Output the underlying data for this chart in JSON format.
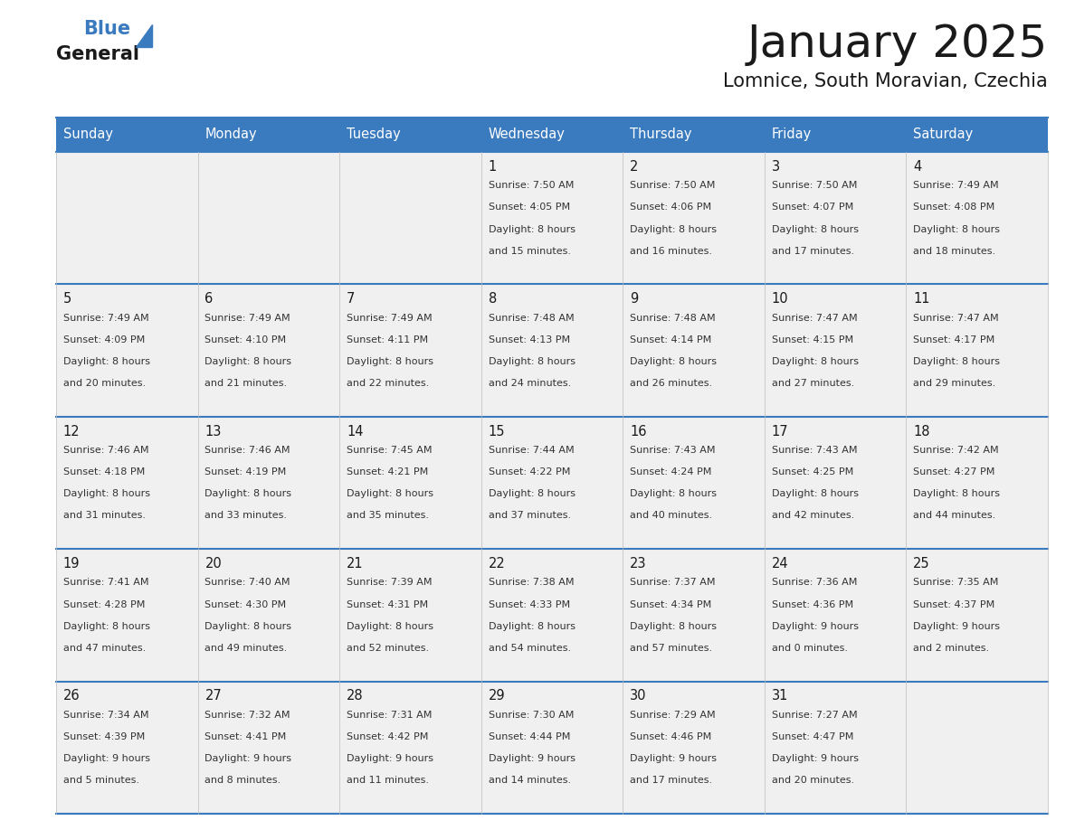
{
  "title": "January 2025",
  "subtitle": "Lomnice, South Moravian, Czechia",
  "header_bg_color": "#3a7abf",
  "header_text_color": "#ffffff",
  "cell_bg_color": "#f0f0f0",
  "border_color": "#3a7abf",
  "day_headers": [
    "Sunday",
    "Monday",
    "Tuesday",
    "Wednesday",
    "Thursday",
    "Friday",
    "Saturday"
  ],
  "title_color": "#1a1a1a",
  "subtitle_color": "#1a1a1a",
  "day_num_color": "#1a1a1a",
  "cell_text_color": "#333333",
  "calendar": [
    [
      {
        "day": "",
        "sunrise": "",
        "sunset": "",
        "daylight": ""
      },
      {
        "day": "",
        "sunrise": "",
        "sunset": "",
        "daylight": ""
      },
      {
        "day": "",
        "sunrise": "",
        "sunset": "",
        "daylight": ""
      },
      {
        "day": "1",
        "sunrise": "Sunrise: 7:50 AM",
        "sunset": "Sunset: 4:05 PM",
        "daylight": "Daylight: 8 hours\nand 15 minutes."
      },
      {
        "day": "2",
        "sunrise": "Sunrise: 7:50 AM",
        "sunset": "Sunset: 4:06 PM",
        "daylight": "Daylight: 8 hours\nand 16 minutes."
      },
      {
        "day": "3",
        "sunrise": "Sunrise: 7:50 AM",
        "sunset": "Sunset: 4:07 PM",
        "daylight": "Daylight: 8 hours\nand 17 minutes."
      },
      {
        "day": "4",
        "sunrise": "Sunrise: 7:49 AM",
        "sunset": "Sunset: 4:08 PM",
        "daylight": "Daylight: 8 hours\nand 18 minutes."
      }
    ],
    [
      {
        "day": "5",
        "sunrise": "Sunrise: 7:49 AM",
        "sunset": "Sunset: 4:09 PM",
        "daylight": "Daylight: 8 hours\nand 20 minutes."
      },
      {
        "day": "6",
        "sunrise": "Sunrise: 7:49 AM",
        "sunset": "Sunset: 4:10 PM",
        "daylight": "Daylight: 8 hours\nand 21 minutes."
      },
      {
        "day": "7",
        "sunrise": "Sunrise: 7:49 AM",
        "sunset": "Sunset: 4:11 PM",
        "daylight": "Daylight: 8 hours\nand 22 minutes."
      },
      {
        "day": "8",
        "sunrise": "Sunrise: 7:48 AM",
        "sunset": "Sunset: 4:13 PM",
        "daylight": "Daylight: 8 hours\nand 24 minutes."
      },
      {
        "day": "9",
        "sunrise": "Sunrise: 7:48 AM",
        "sunset": "Sunset: 4:14 PM",
        "daylight": "Daylight: 8 hours\nand 26 minutes."
      },
      {
        "day": "10",
        "sunrise": "Sunrise: 7:47 AM",
        "sunset": "Sunset: 4:15 PM",
        "daylight": "Daylight: 8 hours\nand 27 minutes."
      },
      {
        "day": "11",
        "sunrise": "Sunrise: 7:47 AM",
        "sunset": "Sunset: 4:17 PM",
        "daylight": "Daylight: 8 hours\nand 29 minutes."
      }
    ],
    [
      {
        "day": "12",
        "sunrise": "Sunrise: 7:46 AM",
        "sunset": "Sunset: 4:18 PM",
        "daylight": "Daylight: 8 hours\nand 31 minutes."
      },
      {
        "day": "13",
        "sunrise": "Sunrise: 7:46 AM",
        "sunset": "Sunset: 4:19 PM",
        "daylight": "Daylight: 8 hours\nand 33 minutes."
      },
      {
        "day": "14",
        "sunrise": "Sunrise: 7:45 AM",
        "sunset": "Sunset: 4:21 PM",
        "daylight": "Daylight: 8 hours\nand 35 minutes."
      },
      {
        "day": "15",
        "sunrise": "Sunrise: 7:44 AM",
        "sunset": "Sunset: 4:22 PM",
        "daylight": "Daylight: 8 hours\nand 37 minutes."
      },
      {
        "day": "16",
        "sunrise": "Sunrise: 7:43 AM",
        "sunset": "Sunset: 4:24 PM",
        "daylight": "Daylight: 8 hours\nand 40 minutes."
      },
      {
        "day": "17",
        "sunrise": "Sunrise: 7:43 AM",
        "sunset": "Sunset: 4:25 PM",
        "daylight": "Daylight: 8 hours\nand 42 minutes."
      },
      {
        "day": "18",
        "sunrise": "Sunrise: 7:42 AM",
        "sunset": "Sunset: 4:27 PM",
        "daylight": "Daylight: 8 hours\nand 44 minutes."
      }
    ],
    [
      {
        "day": "19",
        "sunrise": "Sunrise: 7:41 AM",
        "sunset": "Sunset: 4:28 PM",
        "daylight": "Daylight: 8 hours\nand 47 minutes."
      },
      {
        "day": "20",
        "sunrise": "Sunrise: 7:40 AM",
        "sunset": "Sunset: 4:30 PM",
        "daylight": "Daylight: 8 hours\nand 49 minutes."
      },
      {
        "day": "21",
        "sunrise": "Sunrise: 7:39 AM",
        "sunset": "Sunset: 4:31 PM",
        "daylight": "Daylight: 8 hours\nand 52 minutes."
      },
      {
        "day": "22",
        "sunrise": "Sunrise: 7:38 AM",
        "sunset": "Sunset: 4:33 PM",
        "daylight": "Daylight: 8 hours\nand 54 minutes."
      },
      {
        "day": "23",
        "sunrise": "Sunrise: 7:37 AM",
        "sunset": "Sunset: 4:34 PM",
        "daylight": "Daylight: 8 hours\nand 57 minutes."
      },
      {
        "day": "24",
        "sunrise": "Sunrise: 7:36 AM",
        "sunset": "Sunset: 4:36 PM",
        "daylight": "Daylight: 9 hours\nand 0 minutes."
      },
      {
        "day": "25",
        "sunrise": "Sunrise: 7:35 AM",
        "sunset": "Sunset: 4:37 PM",
        "daylight": "Daylight: 9 hours\nand 2 minutes."
      }
    ],
    [
      {
        "day": "26",
        "sunrise": "Sunrise: 7:34 AM",
        "sunset": "Sunset: 4:39 PM",
        "daylight": "Daylight: 9 hours\nand 5 minutes."
      },
      {
        "day": "27",
        "sunrise": "Sunrise: 7:32 AM",
        "sunset": "Sunset: 4:41 PM",
        "daylight": "Daylight: 9 hours\nand 8 minutes."
      },
      {
        "day": "28",
        "sunrise": "Sunrise: 7:31 AM",
        "sunset": "Sunset: 4:42 PM",
        "daylight": "Daylight: 9 hours\nand 11 minutes."
      },
      {
        "day": "29",
        "sunrise": "Sunrise: 7:30 AM",
        "sunset": "Sunset: 4:44 PM",
        "daylight": "Daylight: 9 hours\nand 14 minutes."
      },
      {
        "day": "30",
        "sunrise": "Sunrise: 7:29 AM",
        "sunset": "Sunset: 4:46 PM",
        "daylight": "Daylight: 9 hours\nand 17 minutes."
      },
      {
        "day": "31",
        "sunrise": "Sunrise: 7:27 AM",
        "sunset": "Sunset: 4:47 PM",
        "daylight": "Daylight: 9 hours\nand 20 minutes."
      },
      {
        "day": "",
        "sunrise": "",
        "sunset": "",
        "daylight": ""
      }
    ]
  ]
}
